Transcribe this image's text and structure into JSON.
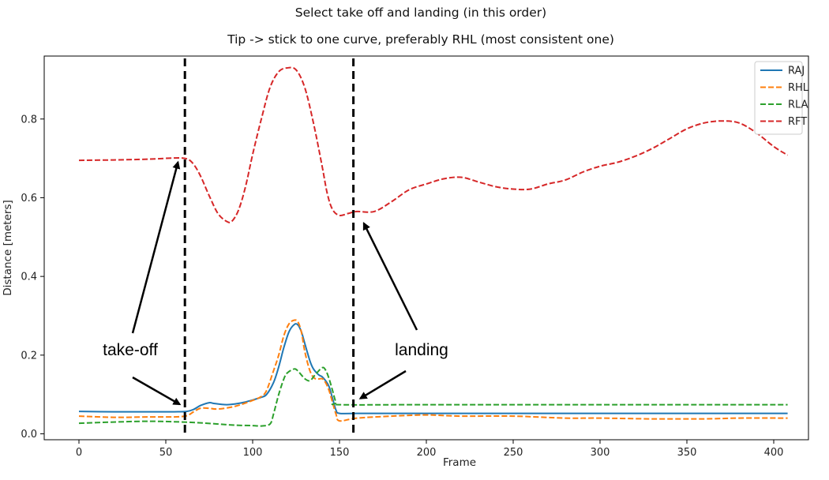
{
  "chart_data": {
    "type": "line",
    "title": "Select take off and landing (in this order)",
    "subtitle": "Tip -> stick to one curve, preferably RHL (most consistent one)",
    "xlabel": "Frame",
    "ylabel": "Distance [meters]",
    "xlim": [
      -20,
      420
    ],
    "ylim": [
      -0.015,
      0.96
    ],
    "xticks": [
      0,
      50,
      100,
      150,
      200,
      250,
      300,
      350,
      400
    ],
    "yticks": [
      0.0,
      0.2,
      0.4,
      0.6,
      0.8
    ],
    "ytick_labels": [
      "0.0",
      "0.2",
      "0.4",
      "0.6",
      "0.8"
    ],
    "grid": false,
    "legend_position": "top-right",
    "series": [
      {
        "name": "RAJ",
        "color": "#1f77b4",
        "dash": "solid",
        "x": [
          0,
          20,
          40,
          55,
          62,
          66,
          70,
          75,
          78,
          85,
          90,
          95,
          100,
          105,
          108,
          112,
          115,
          118,
          121,
          124,
          126,
          128,
          130,
          133,
          135,
          138,
          140,
          142,
          144,
          146,
          148,
          150,
          160,
          200,
          250,
          300,
          350,
          400,
          408
        ],
        "y": [
          0.057,
          0.056,
          0.056,
          0.056,
          0.057,
          0.062,
          0.072,
          0.079,
          0.077,
          0.074,
          0.076,
          0.08,
          0.086,
          0.093,
          0.1,
          0.13,
          0.17,
          0.22,
          0.26,
          0.278,
          0.277,
          0.26,
          0.23,
          0.185,
          0.165,
          0.15,
          0.145,
          0.135,
          0.12,
          0.09,
          0.06,
          0.052,
          0.052,
          0.052,
          0.052,
          0.052,
          0.052,
          0.052,
          0.052
        ]
      },
      {
        "name": "RHL",
        "color": "#ff7f0e",
        "dash": "dashed",
        "x": [
          0,
          20,
          40,
          55,
          62,
          66,
          70,
          75,
          80,
          90,
          100,
          105,
          108,
          112,
          115,
          118,
          121,
          124,
          126,
          128,
          130,
          133,
          136,
          140,
          142,
          144,
          146,
          148,
          150,
          160,
          180,
          200,
          220,
          250,
          280,
          300,
          330,
          360,
          380,
          408
        ],
        "y": [
          0.045,
          0.042,
          0.043,
          0.043,
          0.046,
          0.056,
          0.065,
          0.065,
          0.063,
          0.07,
          0.085,
          0.095,
          0.11,
          0.16,
          0.2,
          0.25,
          0.28,
          0.289,
          0.285,
          0.26,
          0.21,
          0.16,
          0.14,
          0.14,
          0.13,
          0.11,
          0.08,
          0.05,
          0.033,
          0.04,
          0.045,
          0.048,
          0.045,
          0.045,
          0.04,
          0.04,
          0.038,
          0.038,
          0.04,
          0.04
        ]
      },
      {
        "name": "RLA",
        "color": "#2ca02c",
        "dash": "dashed",
        "x": [
          0,
          20,
          40,
          60,
          70,
          80,
          90,
          100,
          105,
          110,
          112,
          115,
          118,
          120,
          124,
          126,
          128,
          130,
          133,
          136,
          140,
          142,
          144,
          146,
          148,
          150,
          200,
          300,
          408
        ],
        "y": [
          0.027,
          0.03,
          0.032,
          0.03,
          0.028,
          0.025,
          0.022,
          0.021,
          0.02,
          0.025,
          0.05,
          0.1,
          0.14,
          0.155,
          0.165,
          0.16,
          0.15,
          0.14,
          0.135,
          0.15,
          0.168,
          0.162,
          0.14,
          0.11,
          0.08,
          0.074,
          0.074,
          0.074,
          0.074
        ]
      },
      {
        "name": "RFT",
        "color": "#d62728",
        "dash": "dashed",
        "x": [
          0,
          20,
          40,
          55,
          62,
          66,
          70,
          75,
          80,
          85,
          88,
          92,
          96,
          100,
          105,
          110,
          115,
          120,
          125,
          130,
          135,
          140,
          143,
          146,
          150,
          155,
          160,
          170,
          180,
          190,
          200,
          210,
          220,
          230,
          240,
          250,
          260,
          270,
          280,
          290,
          300,
          310,
          320,
          330,
          340,
          350,
          360,
          370,
          380,
          390,
          400,
          408
        ],
        "y": [
          0.695,
          0.696,
          0.698,
          0.701,
          0.699,
          0.685,
          0.655,
          0.605,
          0.56,
          0.54,
          0.54,
          0.57,
          0.63,
          0.71,
          0.8,
          0.88,
          0.92,
          0.93,
          0.925,
          0.88,
          0.79,
          0.68,
          0.61,
          0.57,
          0.555,
          0.56,
          0.565,
          0.565,
          0.59,
          0.62,
          0.635,
          0.648,
          0.652,
          0.64,
          0.628,
          0.622,
          0.622,
          0.635,
          0.645,
          0.665,
          0.68,
          0.69,
          0.705,
          0.725,
          0.75,
          0.775,
          0.79,
          0.795,
          0.79,
          0.765,
          0.73,
          0.708
        ]
      }
    ],
    "annotations": [
      {
        "text": "take-off",
        "target": {
          "x": 57,
          "y": 0.69
        },
        "target2": {
          "x": 58,
          "y": 0.075
        }
      },
      {
        "text": "landing",
        "target": {
          "x": 164,
          "y": 0.535
        },
        "target2": {
          "x": 162,
          "y": 0.09
        }
      }
    ],
    "vlines": [
      61,
      158
    ]
  }
}
